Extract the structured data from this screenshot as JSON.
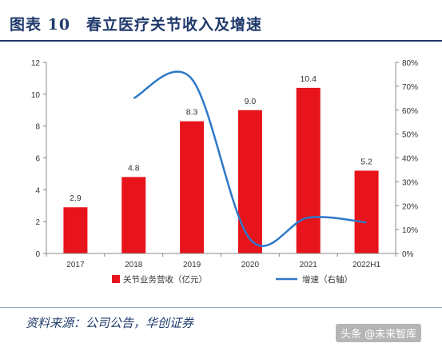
{
  "header": {
    "title": "图表 10　春立医疗关节收入及增速"
  },
  "footer": {
    "source": "资料来源：公司公告，华创证券",
    "watermark": "头条 @未来智库"
  },
  "colors": {
    "bar": "#e8141c",
    "line": "#2e78c8",
    "axis": "#888888",
    "title": "#1f3a6b"
  },
  "chart_data": {
    "type": "bar",
    "categories": [
      "2017",
      "2018",
      "2019",
      "2020",
      "2021",
      "2022H1"
    ],
    "series": [
      {
        "name": "关节业务营收（亿元）",
        "type": "bar",
        "axis": "left",
        "values": [
          2.9,
          4.8,
          8.3,
          9.0,
          10.4,
          5.2
        ],
        "labels": [
          "2.9",
          "4.8",
          "8.3",
          "9.0",
          "10.4",
          "5.2"
        ]
      },
      {
        "name": "增速（右轴）",
        "type": "line",
        "axis": "right",
        "values": [
          null,
          0.65,
          0.73,
          0.06,
          0.15,
          0.13
        ]
      }
    ],
    "y_left": {
      "ylim": [
        0,
        12
      ],
      "ticks": [
        "0",
        "2",
        "4",
        "6",
        "8",
        "10",
        "12"
      ]
    },
    "y_right": {
      "ylim": [
        0,
        0.8
      ],
      "ticks": [
        "0%",
        "10%",
        "20%",
        "30%",
        "40%",
        "50%",
        "60%",
        "70%",
        "80%"
      ]
    },
    "legend_position": "bottom"
  }
}
